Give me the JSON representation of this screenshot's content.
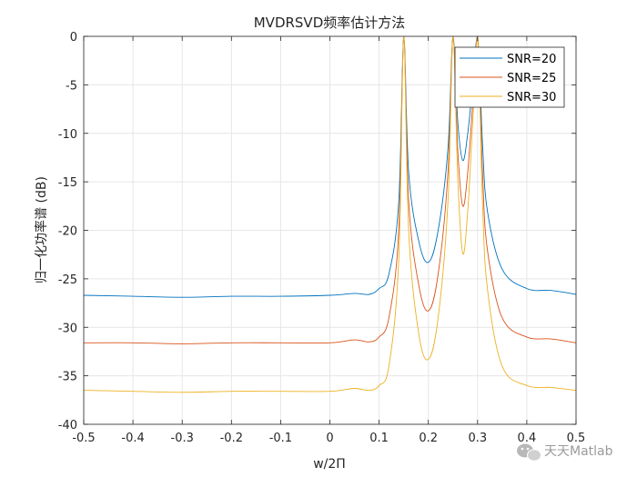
{
  "chart_data": {
    "type": "line",
    "title": "MVDRSVD频率估计方法",
    "xlabel": "w/2Π",
    "ylabel": "归一化功率谱 (dB)",
    "xlim": [
      -0.5,
      0.5
    ],
    "ylim": [
      -40,
      0
    ],
    "xticks": [
      -0.5,
      -0.4,
      -0.3,
      -0.2,
      -0.1,
      0,
      0.1,
      0.2,
      0.3,
      0.4,
      0.5
    ],
    "xtick_labels": [
      "-0.5",
      "-0.4",
      "-0.3",
      "-0.2",
      "-0.1",
      "0",
      "0.1",
      "0.2",
      "0.3",
      "0.4",
      "0.5"
    ],
    "yticks": [
      0,
      -5,
      -10,
      -15,
      -20,
      -25,
      -30,
      -35,
      -40
    ],
    "ytick_labels": [
      "0",
      "-5",
      "-10",
      "-15",
      "-20",
      "-25",
      "-30",
      "-35",
      "-40"
    ],
    "grid": true,
    "legend_position": "top-right",
    "peaks": [
      0.15,
      0.25,
      0.3
    ],
    "series": [
      {
        "name": "SNR=20",
        "color": "#0072BD",
        "x": [
          -0.5,
          -0.4,
          -0.3,
          -0.2,
          -0.1,
          0.0,
          0.05,
          0.08,
          0.1,
          0.12,
          0.14,
          0.15,
          0.16,
          0.18,
          0.2,
          0.22,
          0.24,
          0.25,
          0.26,
          0.27,
          0.28,
          0.29,
          0.3,
          0.31,
          0.32,
          0.35,
          0.4,
          0.45,
          0.5
        ],
        "y": [
          -26.7,
          -26.8,
          -26.9,
          -26.8,
          -26.8,
          -26.7,
          -26.5,
          -26.6,
          -26.0,
          -24.5,
          -17.0,
          0.0,
          -14.0,
          -21.0,
          -23.3,
          -20.0,
          -11.5,
          0.0,
          -9.0,
          -12.8,
          -10.0,
          -5.0,
          0.0,
          -11.0,
          -18.0,
          -24.0,
          -26.0,
          -26.2,
          -26.6
        ]
      },
      {
        "name": "SNR=25",
        "color": "#D95319",
        "x": [
          -0.5,
          -0.4,
          -0.3,
          -0.2,
          -0.1,
          0.0,
          0.05,
          0.08,
          0.1,
          0.12,
          0.14,
          0.15,
          0.16,
          0.18,
          0.2,
          0.22,
          0.24,
          0.25,
          0.26,
          0.27,
          0.28,
          0.29,
          0.3,
          0.31,
          0.32,
          0.35,
          0.4,
          0.45,
          0.5
        ],
        "y": [
          -31.6,
          -31.6,
          -31.7,
          -31.6,
          -31.6,
          -31.6,
          -31.3,
          -31.5,
          -31.0,
          -29.0,
          -20.0,
          0.0,
          -17.0,
          -25.5,
          -28.3,
          -24.5,
          -14.0,
          0.0,
          -12.0,
          -17.5,
          -14.0,
          -7.0,
          0.0,
          -14.0,
          -22.0,
          -29.0,
          -31.0,
          -31.2,
          -31.6
        ]
      },
      {
        "name": "SNR=30",
        "color": "#EDB120",
        "x": [
          -0.5,
          -0.4,
          -0.3,
          -0.2,
          -0.1,
          0.0,
          0.05,
          0.08,
          0.1,
          0.12,
          0.14,
          0.15,
          0.16,
          0.18,
          0.2,
          0.22,
          0.24,
          0.25,
          0.26,
          0.27,
          0.28,
          0.29,
          0.3,
          0.31,
          0.32,
          0.35,
          0.4,
          0.45,
          0.5
        ],
        "y": [
          -36.5,
          -36.6,
          -36.7,
          -36.6,
          -36.6,
          -36.6,
          -36.3,
          -36.5,
          -36.0,
          -34.0,
          -23.0,
          0.0,
          -20.0,
          -30.5,
          -33.3,
          -29.0,
          -17.0,
          0.0,
          -15.0,
          -22.4,
          -18.0,
          -9.0,
          0.0,
          -17.0,
          -26.0,
          -34.0,
          -36.0,
          -36.2,
          -36.5
        ]
      }
    ]
  },
  "watermark": {
    "text": "天天Matlab",
    "icon": "wechat-icon"
  }
}
